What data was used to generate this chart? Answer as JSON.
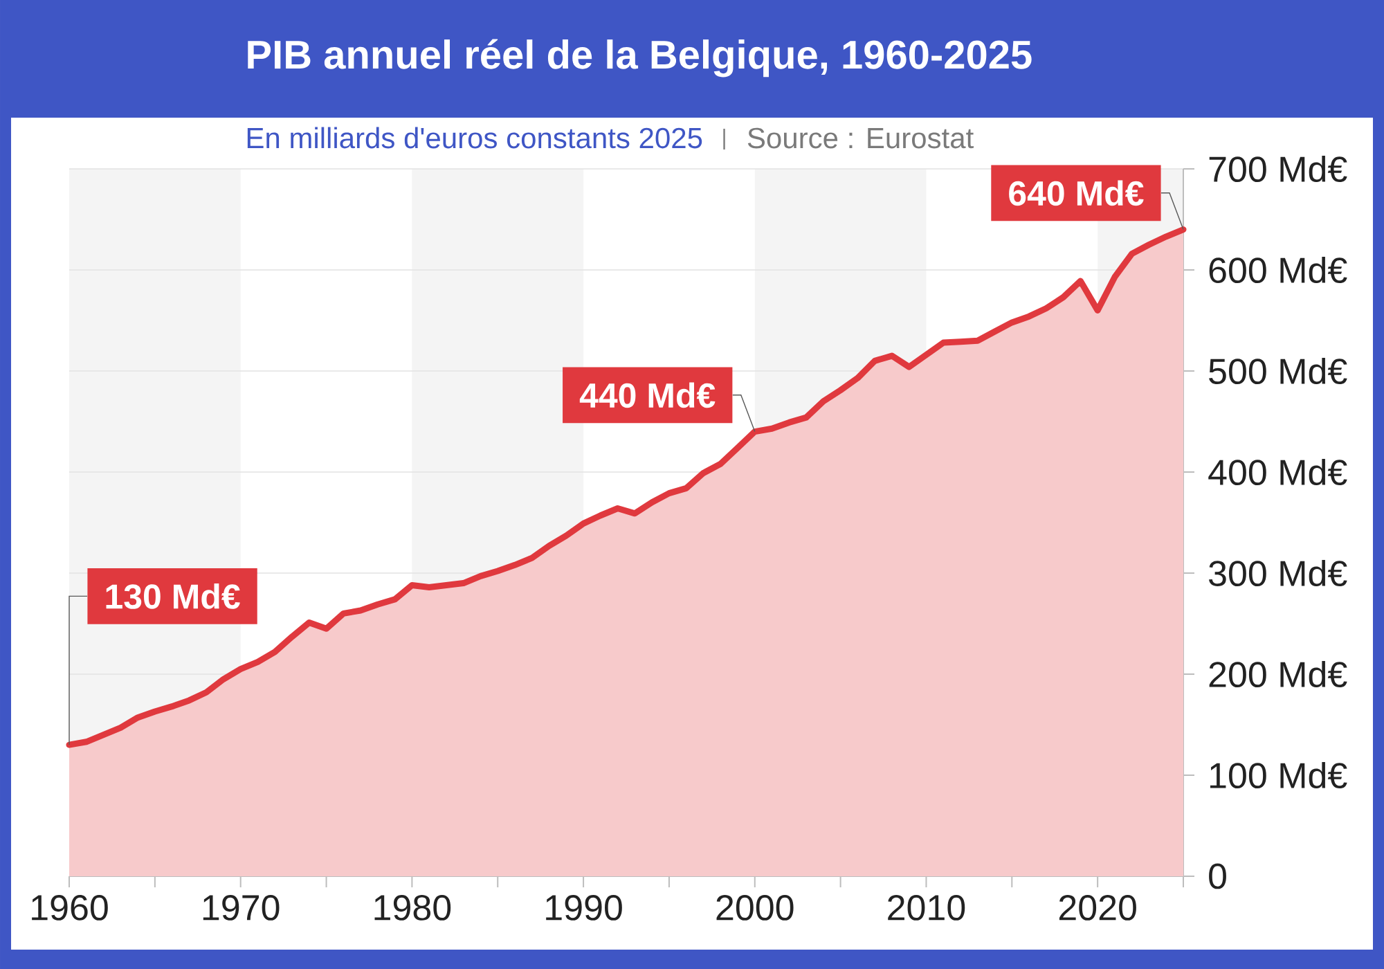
{
  "chart_data": {
    "type": "area",
    "title": "PIB annuel réel de la Belgique, 1960-2025",
    "subtitle": "En milliards d'euros constants 2025",
    "x": [
      1960,
      1961,
      1962,
      1963,
      1964,
      1965,
      1966,
      1967,
      1968,
      1969,
      1970,
      1971,
      1972,
      1973,
      1974,
      1975,
      1976,
      1977,
      1978,
      1979,
      1980,
      1981,
      1982,
      1983,
      1984,
      1985,
      1986,
      1987,
      1988,
      1989,
      1990,
      1991,
      1992,
      1993,
      1994,
      1995,
      1996,
      1997,
      1998,
      1999,
      2000,
      2001,
      2002,
      2003,
      2004,
      2005,
      2006,
      2007,
      2008,
      2009,
      2010,
      2011,
      2012,
      2013,
      2014,
      2015,
      2016,
      2017,
      2018,
      2019,
      2020,
      2021,
      2022,
      2023,
      2024,
      2025
    ],
    "values": [
      130,
      133,
      140,
      147,
      157,
      163,
      168,
      174,
      182,
      195,
      205,
      212,
      222,
      237,
      251,
      245,
      260,
      263,
      269,
      274,
      288,
      286,
      288,
      290,
      297,
      302,
      308,
      315,
      327,
      337,
      349,
      357,
      364,
      359,
      370,
      379,
      384,
      399,
      408,
      424,
      440,
      443,
      449,
      454,
      470,
      481,
      493,
      510,
      515,
      504,
      516,
      528,
      529,
      530,
      539,
      548,
      554,
      562,
      573,
      589,
      560,
      593,
      616,
      625,
      633,
      640
    ],
    "color": "#e0393e",
    "xlim": [
      1960,
      2025
    ],
    "ylim": [
      0,
      700
    ],
    "xticks": [
      1960,
      {
        "value": 1965,
        "label": null
      },
      1970,
      {
        "value": 1975,
        "label": null
      },
      1980,
      {
        "value": 1985,
        "label": null
      },
      1990,
      {
        "value": 1995,
        "label": null
      },
      2000,
      {
        "value": 2005,
        "label": null
      },
      2010,
      {
        "value": 2015,
        "label": null
      },
      2020,
      {
        "value": 2025,
        "label": null
      }
    ],
    "yticks": [
      0,
      {
        "value": 100,
        "label": "100 Md€"
      },
      {
        "value": 200,
        "label": "200 Md€"
      },
      {
        "value": 300,
        "label": "300 Md€"
      },
      {
        "value": 400,
        "label": "400 Md€"
      },
      {
        "value": 500,
        "label": "500 Md€"
      },
      {
        "value": 600,
        "label": "600 Md€"
      },
      {
        "value": 700,
        "label": "700 Md€"
      }
    ],
    "grid": "y",
    "bands": [
      {
        "axis": "x",
        "from": 1960,
        "to": 1970,
        "color": "#f4f4f4"
      },
      {
        "axis": "x",
        "from": 1980,
        "to": 1990,
        "color": "#f4f4f4"
      },
      {
        "axis": "x",
        "from": 2000,
        "to": 2010,
        "color": "#f4f4f4"
      },
      {
        "axis": "x",
        "from": 2020,
        "to": 2025,
        "color": "#f4f4f4"
      }
    ],
    "annotations": [
      {
        "text": "130 Md€",
        "x": 1960,
        "y": 130
      },
      {
        "text": "440 Md€",
        "x": 2000,
        "y": 440
      },
      {
        "text": "640 Md€",
        "x": 2025,
        "y": 640
      },
      "Source : Eurostat"
    ]
  }
}
